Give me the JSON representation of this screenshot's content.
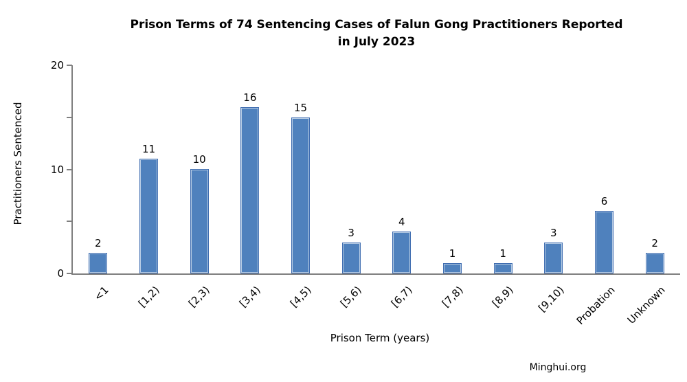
{
  "chart_data": {
    "type": "bar",
    "title": "Prison Terms of 74 Sentencing Cases of Falun Gong Practitioners Reported in July 2023",
    "title_line1": "Prison Terms of 74 Sentencing Cases of Falun Gong Practitioners Reported",
    "title_line2": "in July 2023",
    "categories": [
      "<1",
      "[1,2)",
      "[2,3)",
      "[3,4)",
      "[4,5)",
      "[5,6)",
      "[6,7)",
      "[7,8)",
      "[8,9)",
      "[9,10)",
      "Probation",
      "Unknown"
    ],
    "values": [
      2,
      11,
      10,
      16,
      15,
      3,
      4,
      1,
      1,
      3,
      6,
      2
    ],
    "xlabel": "Prison Term (years)",
    "ylabel": "Practitioners Sentenced",
    "ylim": [
      0,
      20
    ],
    "yticks_all": [
      0,
      5,
      10,
      15,
      20
    ],
    "yticks_labeled": [
      0,
      10,
      20
    ],
    "grid": false,
    "legend": false,
    "bar_color": "#4f81bd",
    "bar_border_color": "#3e6cb0",
    "bar_inner_highlight": "#b7cce4",
    "axis_color": "#7f7f7f",
    "text_color": "#000000"
  },
  "footer": {
    "attribution": "Minghui.org"
  }
}
